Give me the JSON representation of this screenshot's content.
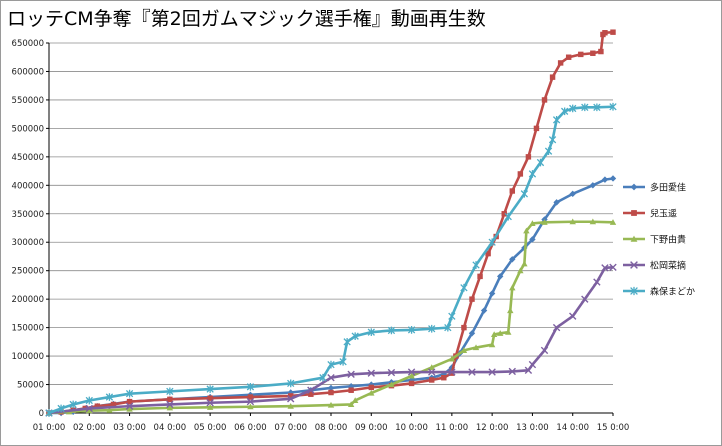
{
  "chart_data": {
    "type": "line",
    "title": "ロッテCM争奪『第2回ガムマジック選手権』動画再生数",
    "xlabel": "",
    "ylabel": "",
    "ylim": [
      0,
      650000
    ],
    "xlim": [
      1,
      15
    ],
    "grid": true,
    "legend_position": "right",
    "y_ticks": [
      0,
      50000,
      100000,
      150000,
      200000,
      250000,
      300000,
      350000,
      400000,
      450000,
      500000,
      550000,
      600000,
      650000
    ],
    "y_tick_labels": [
      "0",
      "50000",
      "100000",
      "150000",
      "200000",
      "250000",
      "300000",
      "350000",
      "400000",
      "450000",
      "500000",
      "550000",
      "600000",
      "650000"
    ],
    "x_ticks": [
      1,
      2,
      3,
      4,
      5,
      6,
      7,
      8,
      9,
      10,
      11,
      12,
      13,
      14,
      15
    ],
    "x_tick_labels": [
      "01 0:00",
      "02 0:00",
      "03 0:00",
      "04 0:00",
      "05 0:00",
      "06 0:00",
      "07 0:00",
      "08 0:00",
      "09 0:00",
      "10 0:00",
      "11 0:00",
      "12 0:00",
      "13 0:00",
      "14 0:00",
      "15 0:00"
    ],
    "series": [
      {
        "name": "多田愛佳",
        "color": "#4a7ebb",
        "marker": "diamond",
        "x": [
          1,
          1.3,
          1.6,
          1.9,
          2.2,
          2.6,
          3,
          4,
          5,
          6,
          7,
          7.5,
          8,
          8.5,
          9,
          9.5,
          10,
          10.5,
          10.8,
          11,
          11.2,
          11.5,
          11.8,
          12,
          12.2,
          12.5,
          12.8,
          13,
          13.3,
          13.6,
          14,
          14.5,
          14.8,
          15
        ],
        "y": [
          0,
          0,
          2000,
          8000,
          12000,
          16000,
          20000,
          24000,
          28000,
          32000,
          36000,
          40000,
          44000,
          47000,
          50000,
          54000,
          58000,
          62000,
          68000,
          80000,
          105000,
          140000,
          180000,
          210000,
          240000,
          270000,
          290000,
          305000,
          340000,
          370000,
          385000,
          400000,
          410000,
          412000
        ]
      },
      {
        "name": "兒玉遥",
        "color": "#be4b48",
        "marker": "square",
        "x": [
          1,
          1.3,
          1.6,
          1.9,
          2.2,
          2.6,
          3,
          4,
          5,
          6,
          7,
          7.5,
          8,
          8.5,
          9,
          9.5,
          10,
          10.5,
          10.8,
          11,
          11.1,
          11.3,
          11.5,
          11.7,
          11.9,
          12.1,
          12.3,
          12.5,
          12.7,
          12.9,
          13.1,
          13.3,
          13.5,
          13.7,
          13.9,
          14.2,
          14.5,
          14.7,
          14.75,
          14.8,
          15
        ],
        "y": [
          0,
          2000,
          5000,
          8000,
          12000,
          15000,
          20000,
          24000,
          26000,
          28000,
          30000,
          33000,
          36000,
          40000,
          45000,
          48000,
          52000,
          58000,
          62000,
          70000,
          100000,
          150000,
          200000,
          240000,
          280000,
          310000,
          350000,
          390000,
          420000,
          450000,
          500000,
          550000,
          590000,
          615000,
          625000,
          630000,
          632000,
          635000,
          665000,
          668000,
          669000
        ]
      },
      {
        "name": "下野由貴",
        "color": "#98b954",
        "marker": "triangle",
        "x": [
          1,
          1.5,
          2,
          2.5,
          3,
          4,
          5,
          6,
          7,
          8,
          8.5,
          8.6,
          9,
          9.5,
          10,
          10.5,
          11,
          11.3,
          11.6,
          12,
          12.05,
          12.2,
          12.4,
          12.45,
          12.5,
          12.7,
          12.8,
          12.85,
          13,
          13.3,
          14,
          14.5,
          15
        ],
        "y": [
          0,
          2000,
          4000,
          5000,
          7000,
          9000,
          10000,
          11000,
          12000,
          14000,
          15000,
          22000,
          35000,
          50000,
          65000,
          80000,
          95000,
          110000,
          115000,
          120000,
          138000,
          140000,
          142000,
          180000,
          220000,
          250000,
          262000,
          320000,
          333000,
          335000,
          336000,
          336000,
          335000
        ]
      },
      {
        "name": "松岡菜摘",
        "color": "#7d60a0",
        "marker": "x",
        "x": [
          1,
          2,
          3,
          4,
          5,
          6,
          7,
          7.5,
          8,
          8.5,
          9,
          9.5,
          10,
          10.5,
          11,
          11.5,
          12,
          12.5,
          12.9,
          13,
          13.3,
          13.6,
          14,
          14.3,
          14.6,
          14.8,
          15
        ],
        "y": [
          0,
          8000,
          12000,
          15000,
          18000,
          20000,
          25000,
          40000,
          62000,
          68000,
          70000,
          71000,
          72000,
          72000,
          72000,
          72000,
          72000,
          73000,
          75000,
          85000,
          110000,
          150000,
          170000,
          200000,
          230000,
          255000,
          256000
        ]
      },
      {
        "name": "森保まどか",
        "color": "#4bacc6",
        "marker": "star",
        "x": [
          1,
          1.3,
          1.6,
          2,
          2.5,
          3,
          4,
          5,
          6,
          7,
          7.8,
          8,
          8.3,
          8.4,
          8.6,
          9,
          9.5,
          10,
          10.5,
          10.9,
          11,
          11.3,
          11.6,
          12,
          12.4,
          12.8,
          13,
          13.2,
          13.4,
          13.5,
          13.6,
          13.8,
          14,
          14.3,
          14.6,
          15
        ],
        "y": [
          0,
          8000,
          15000,
          22000,
          28000,
          34000,
          38000,
          42000,
          46000,
          52000,
          62000,
          85000,
          90000,
          125000,
          135000,
          142000,
          145000,
          146000,
          148000,
          150000,
          170000,
          220000,
          260000,
          300000,
          345000,
          385000,
          420000,
          440000,
          460000,
          480000,
          515000,
          530000,
          535000,
          537000,
          537000,
          538000
        ]
      }
    ]
  }
}
